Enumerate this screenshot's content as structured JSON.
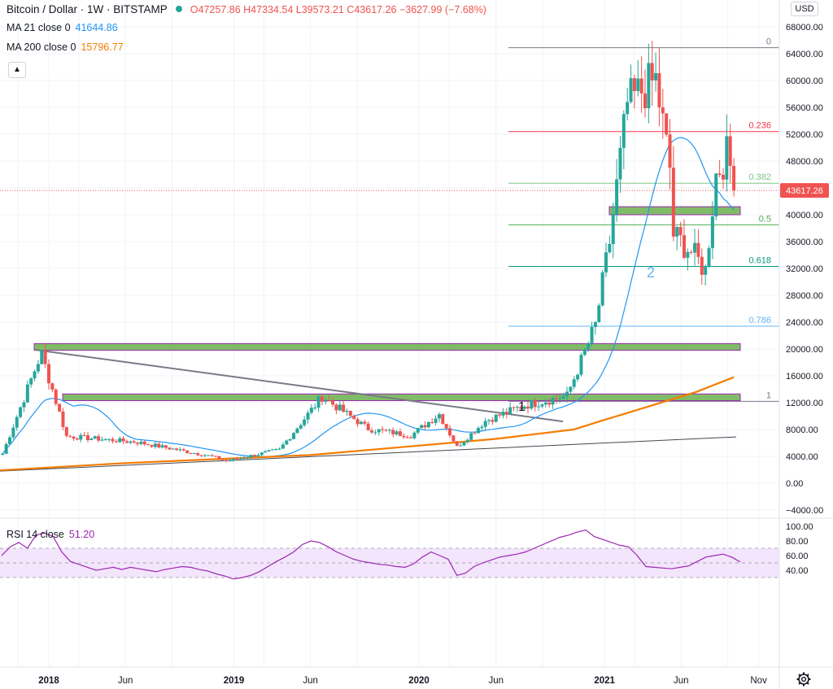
{
  "header": {
    "symbol": "Bitcoin / Dollar · 1W · BITSTAMP",
    "ohlc": "O47257.86 H47334.54 L39573.21 C43617.26 −3627.99 (−7.68%)",
    "ma21_label": "MA 21 close 0",
    "ma21_value": "41644.86",
    "ma200_label": "MA 200 close 0",
    "ma200_value": "15796.77",
    "rsi_label": "RSI 14 close",
    "rsi_value": "51.20",
    "currency": "USD"
  },
  "colors": {
    "up": "#26a69a",
    "down": "#ef5350",
    "ma21": "#2196f3",
    "ma200": "#f57c00",
    "rsi": "#9c27b0",
    "rsi_band": "#f3e5fc",
    "zone_fill": "#6ab04c",
    "zone_border": "#9c27b0"
  },
  "chart_data": [
    {
      "type": "candlestick",
      "symbol": "Bitcoin / Dollar",
      "interval": "1W",
      "exchange": "BITSTAMP",
      "x_ticks": [
        "2018",
        "Jun",
        "2019",
        "Jun",
        "2020",
        "Jun",
        "2021",
        "Jun",
        "Nov"
      ],
      "y_ticks": [
        "68000.00",
        "64000.00",
        "60000.00",
        "56000.00",
        "52000.00",
        "48000.00",
        "44000.00",
        "40000.00",
        "36000.00",
        "32000.00",
        "28000.00",
        "24000.00",
        "20000.00",
        "16000.00",
        "12000.00",
        "8000.00",
        "4000.00",
        "0.00",
        "−4000.00"
      ],
      "ylim": [
        -4000,
        68000
      ],
      "last_price": 43617.26,
      "last_price_label": "43617.26",
      "key_points": [
        {
          "date": "2017-10-02",
          "close": 4400
        },
        {
          "date": "2017-12-17",
          "close": 19400
        },
        {
          "date": "2018-02-05",
          "close": 7000
        },
        {
          "date": "2018-06-25",
          "close": 6100
        },
        {
          "date": "2018-11-19",
          "close": 4000
        },
        {
          "date": "2018-12-17",
          "close": 3300
        },
        {
          "date": "2019-04-01",
          "close": 5000
        },
        {
          "date": "2019-06-24",
          "close": 12900
        },
        {
          "date": "2019-09-23",
          "close": 8100
        },
        {
          "date": "2019-12-16",
          "close": 7100
        },
        {
          "date": "2020-02-10",
          "close": 10300
        },
        {
          "date": "2020-03-16",
          "close": 5400
        },
        {
          "date": "2020-05-11",
          "close": 9300
        },
        {
          "date": "2020-07-27",
          "close": 11600
        },
        {
          "date": "2020-10-19",
          "close": 13000
        },
        {
          "date": "2020-12-14",
          "close": 23500
        },
        {
          "date": "2021-01-11",
          "close": 36000
        },
        {
          "date": "2021-02-15",
          "close": 56500
        },
        {
          "date": "2021-03-15",
          "close": 58500
        },
        {
          "date": "2021-04-12",
          "close": 60000
        },
        {
          "date": "2021-05-10",
          "close": 47000
        },
        {
          "date": "2021-05-17",
          "close": 37000
        },
        {
          "date": "2021-06-21",
          "close": 34500
        },
        {
          "date": "2021-07-19",
          "close": 31700
        },
        {
          "date": "2021-08-09",
          "close": 46000
        },
        {
          "date": "2021-08-30",
          "close": 49000
        },
        {
          "date": "2021-09-06",
          "close": 47200
        },
        {
          "date": "2021-09-13",
          "close": 43617
        }
      ],
      "ma21_series_name": "MA 21 close 0",
      "ma200_series_name": "MA 200 close 0",
      "fibonacci": [
        {
          "label": "0",
          "value": 64900
        },
        {
          "label": "0.236",
          "value": 52400
        },
        {
          "label": "0.382",
          "value": 44700
        },
        {
          "label": "0.5",
          "value": 38500
        },
        {
          "label": "0.618",
          "value": 32300
        },
        {
          "label": "0.786",
          "value": 23400
        },
        {
          "label": "1",
          "value": 12200
        }
      ],
      "zones": [
        {
          "from": 19800,
          "to": 20800
        },
        {
          "from": 12300,
          "to": 13300
        },
        {
          "from": 40000,
          "to": 41200
        }
      ],
      "annotations": [
        "1",
        "2"
      ]
    },
    {
      "type": "line",
      "name": "RSI 14 close",
      "y_ticks": [
        "100.00",
        "80.00",
        "60.00",
        "40.00"
      ],
      "ylim": [
        25,
        100
      ],
      "band": [
        30,
        70
      ],
      "values": [
        60,
        72,
        78,
        70,
        88,
        91,
        86,
        65,
        52,
        48,
        44,
        40,
        42,
        44,
        41,
        44,
        42,
        40,
        38,
        41,
        43,
        45,
        44,
        41,
        39,
        35,
        32,
        28,
        30,
        33,
        38,
        45,
        52,
        58,
        65,
        75,
        80,
        78,
        72,
        65,
        60,
        55,
        52,
        50,
        48,
        47,
        45,
        44,
        49,
        58,
        65,
        60,
        55,
        33,
        36,
        45,
        50,
        54,
        58,
        60,
        62,
        65,
        70,
        75,
        80,
        85,
        88,
        92,
        95,
        86,
        82,
        78,
        74,
        72,
        60,
        45,
        44,
        43,
        42,
        44,
        46,
        52,
        58,
        60,
        62,
        58,
        51.2
      ]
    }
  ]
}
